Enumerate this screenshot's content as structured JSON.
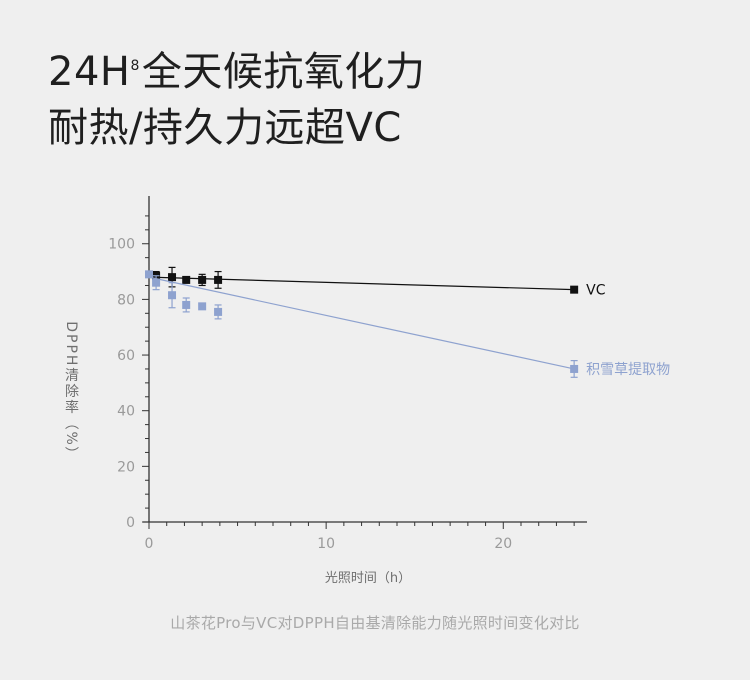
{
  "headline": {
    "line1_main": "24H",
    "line1_sup": "8",
    "line1_rest": "全天候抗氧化力",
    "line2": "耐热/持久力远超VC"
  },
  "caption": "山茶花Pro与VC对DPPH自由基清除能力随光照时间变化对比",
  "colors": {
    "background": "#efefef",
    "vc": "#111111",
    "extract": "#8ea2cf",
    "axis": "#333333",
    "tick_label": "#9a9a9a"
  },
  "chart_data": {
    "type": "scatter",
    "title": "",
    "xlabel": "光照时间（h）",
    "ylabel": "DPPH清除率（%）",
    "xlim": [
      0,
      24.5
    ],
    "ylim": [
      0,
      115
    ],
    "xticks": [
      0,
      10,
      20
    ],
    "yticks": [
      0,
      20,
      40,
      60,
      80,
      100
    ],
    "grid": false,
    "legend": "labels at line ends",
    "series": [
      {
        "name": "VC",
        "color": "#111111",
        "x": [
          0.4,
          1.3,
          2.1,
          3.0,
          3.9,
          24
        ],
        "y": [
          88.5,
          88,
          87,
          87,
          87,
          83.5
        ],
        "err": [
          1.5,
          3.5,
          1,
          2,
          3,
          0.5
        ],
        "fit": {
          "x": [
            0,
            24
          ],
          "y": [
            88,
            83.5
          ]
        }
      },
      {
        "name": "积雪草提取物",
        "color": "#8ea2cf",
        "x": [
          0,
          0.4,
          1.3,
          2.1,
          3.0,
          3.9,
          24
        ],
        "y": [
          89,
          86,
          81.5,
          78,
          77.5,
          75.5,
          55
        ],
        "err": [
          1,
          2.5,
          4.5,
          2.5,
          1,
          2.5,
          3
        ],
        "fit": {
          "x": [
            0,
            24
          ],
          "y": [
            88,
            55
          ]
        }
      }
    ]
  }
}
